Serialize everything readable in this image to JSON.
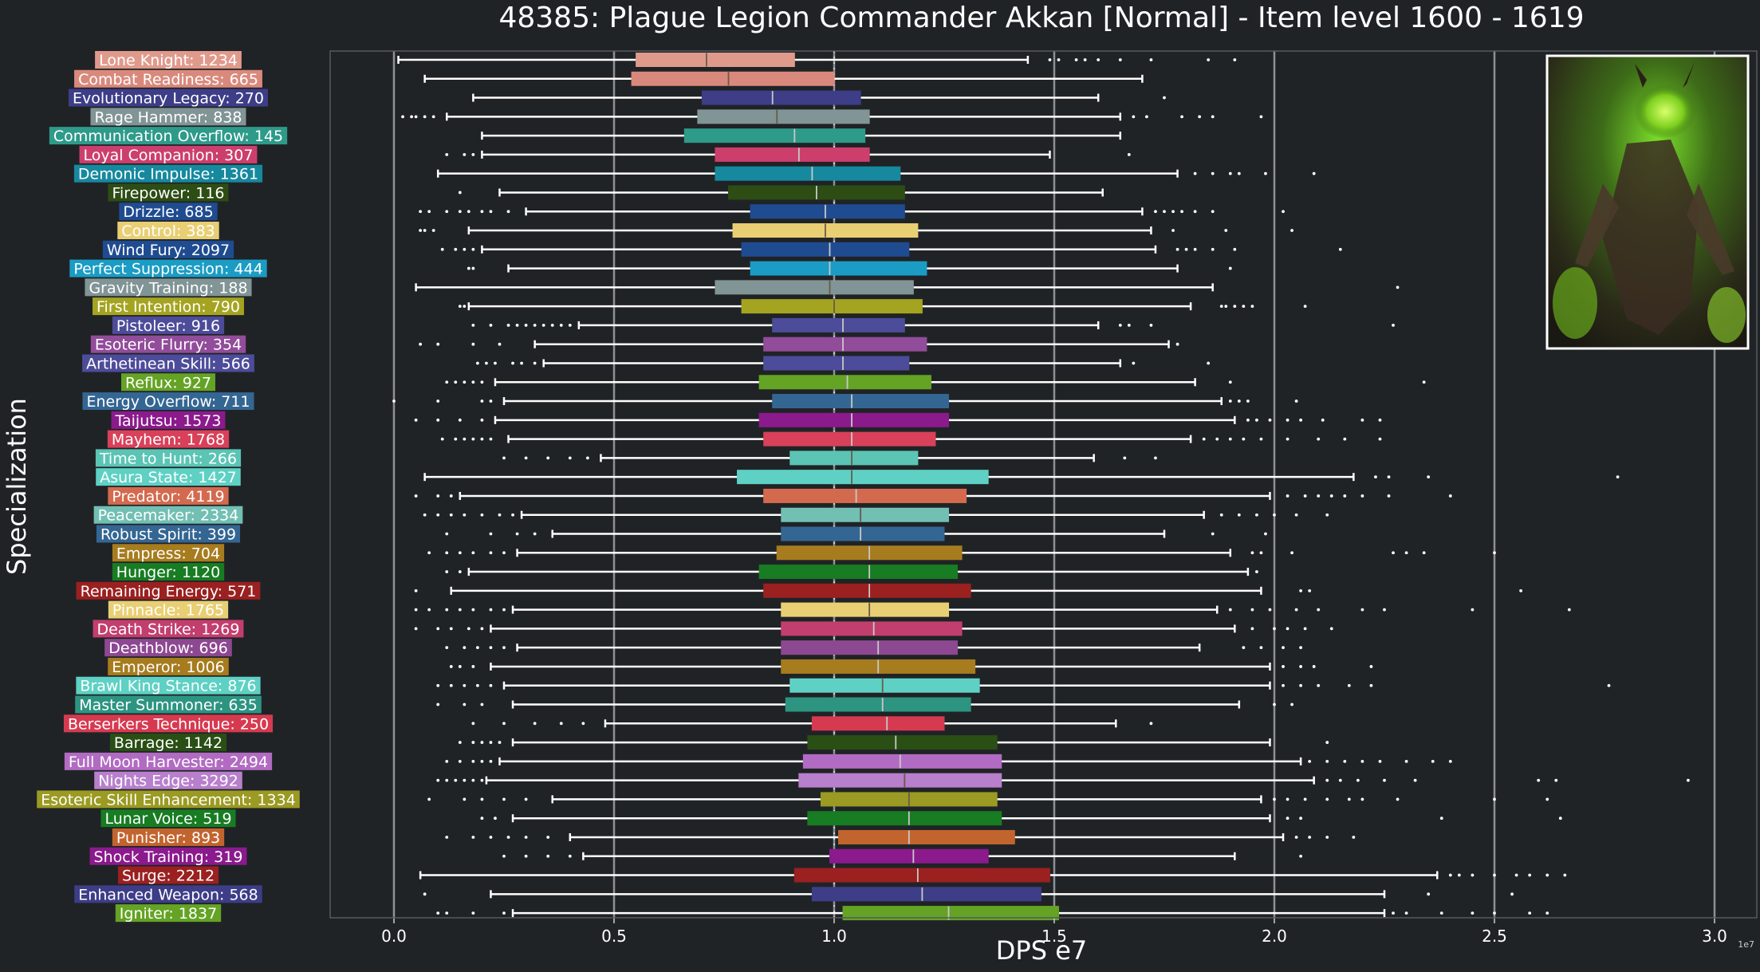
{
  "chart_data": {
    "type": "box",
    "orientation": "horizontal",
    "title": "48385: Plague Legion Commander Akkan [Normal] - Item level 1600 - 1619",
    "xlabel": "DPS e7",
    "ylabel": "Specialization",
    "x_offset_label": "1e7",
    "xlim": [
      -0.15,
      3.07
    ],
    "xticks": [
      0.0,
      0.5,
      1.0,
      1.5,
      2.0,
      2.5,
      3.0
    ],
    "xtick_labels": [
      "0.0",
      "0.5",
      "1.0",
      "1.5",
      "2.0",
      "2.5",
      "3.0"
    ],
    "grid": "vertical major lines",
    "legend": "none",
    "median_marker": "dotted line at 1.0",
    "series": [
      {
        "label": "Lone Knight: 1234",
        "color": "#e09a8c",
        "q1": 0.55,
        "median": 0.71,
        "q3": 0.91,
        "whislo": 0.01,
        "whishi": 1.44,
        "fliers": [
          1.49,
          1.51,
          1.55,
          1.57,
          1.6,
          1.65,
          1.72,
          1.85,
          1.91
        ]
      },
      {
        "label": "Combat Readiness: 665",
        "color": "#d9897c",
        "q1": 0.54,
        "median": 0.76,
        "q3": 1.0,
        "whislo": 0.07,
        "whishi": 1.7,
        "fliers": []
      },
      {
        "label": "Evolutionary Legacy: 270",
        "color": "#3d3d88",
        "q1": 0.7,
        "median": 0.86,
        "q3": 1.06,
        "whislo": 0.18,
        "whishi": 1.6,
        "fliers": [
          1.75
        ]
      },
      {
        "label": "Rage Hammer: 838",
        "color": "#819496",
        "q1": 0.69,
        "median": 0.87,
        "q3": 1.08,
        "whislo": 0.12,
        "whishi": 1.65,
        "fliers": [
          0.02,
          0.04,
          0.05,
          0.07,
          0.09,
          1.68,
          1.71,
          1.79,
          1.83,
          1.86,
          1.97
        ]
      },
      {
        "label": "Communication Overflow: 145",
        "color": "#2e9a8a",
        "q1": 0.66,
        "median": 0.91,
        "q3": 1.07,
        "whislo": 0.2,
        "whishi": 1.65,
        "fliers": []
      },
      {
        "label": "Loyal Companion: 307",
        "color": "#cc3f6d",
        "q1": 0.73,
        "median": 0.92,
        "q3": 1.08,
        "whislo": 0.2,
        "whishi": 1.49,
        "fliers": [
          0.12,
          0.16,
          0.18,
          1.67
        ]
      },
      {
        "label": "Demonic Impulse: 1361",
        "color": "#17899f",
        "q1": 0.73,
        "median": 0.95,
        "q3": 1.15,
        "whislo": 0.1,
        "whishi": 1.78,
        "fliers": [
          1.82,
          1.86,
          1.9,
          1.92,
          1.98,
          2.09
        ]
      },
      {
        "label": "Firepower: 116",
        "color": "#2d4d14",
        "q1": 0.76,
        "median": 0.96,
        "q3": 1.16,
        "whislo": 0.24,
        "whishi": 1.61,
        "fliers": [
          0.15
        ]
      },
      {
        "label": "Drizzle: 685",
        "color": "#1f4c91",
        "q1": 0.81,
        "median": 0.98,
        "q3": 1.16,
        "whislo": 0.3,
        "whishi": 1.7,
        "fliers": [
          0.06,
          0.08,
          0.12,
          0.15,
          0.17,
          0.2,
          0.22,
          0.26,
          1.73,
          1.75,
          1.77,
          1.79,
          1.82,
          1.86,
          2.02
        ]
      },
      {
        "label": "Control: 383",
        "color": "#e9cf74",
        "q1": 0.77,
        "median": 0.98,
        "q3": 1.19,
        "whislo": 0.17,
        "whishi": 1.72,
        "fliers": [
          0.06,
          0.07,
          0.09,
          1.77,
          1.89,
          2.04
        ]
      },
      {
        "label": "Wind Fury: 2097",
        "color": "#1f4c91",
        "q1": 0.79,
        "median": 0.99,
        "q3": 1.17,
        "whislo": 0.2,
        "whishi": 1.73,
        "fliers": [
          0.11,
          0.14,
          0.16,
          0.18,
          1.78,
          1.8,
          1.82,
          1.86,
          1.91,
          2.15
        ]
      },
      {
        "label": "Perfect Suppression: 444",
        "color": "#1a9cc4",
        "q1": 0.81,
        "median": 0.99,
        "q3": 1.21,
        "whislo": 0.26,
        "whishi": 1.78,
        "fliers": [
          0.17,
          0.18,
          1.9
        ]
      },
      {
        "label": "Gravity Training: 188",
        "color": "#819496",
        "q1": 0.73,
        "median": 0.99,
        "q3": 1.18,
        "whislo": 0.05,
        "whishi": 1.86,
        "fliers": [
          2.28
        ]
      },
      {
        "label": "First Intention: 790",
        "color": "#a5a421",
        "q1": 0.79,
        "median": 1.0,
        "q3": 1.2,
        "whislo": 0.17,
        "whishi": 1.81,
        "fliers": [
          0.15,
          0.16,
          1.88,
          1.89,
          1.91,
          1.93,
          1.95,
          2.07
        ]
      },
      {
        "label": "Pistoleer: 916",
        "color": "#4d4c9a",
        "q1": 0.86,
        "median": 1.02,
        "q3": 1.16,
        "whislo": 0.42,
        "whishi": 1.6,
        "fliers": [
          0.18,
          0.22,
          0.26,
          0.28,
          0.3,
          0.32,
          0.34,
          0.36,
          0.38,
          0.4,
          1.65,
          1.67,
          1.72,
          2.27
        ]
      },
      {
        "label": "Esoteric Flurry: 354",
        "color": "#914c9a",
        "q1": 0.84,
        "median": 1.02,
        "q3": 1.21,
        "whislo": 0.32,
        "whishi": 1.76,
        "fliers": [
          0.06,
          0.1,
          0.18,
          0.24,
          1.78
        ]
      },
      {
        "label": "Arthetinean Skill: 566",
        "color": "#4d4c9a",
        "q1": 0.84,
        "median": 1.02,
        "q3": 1.17,
        "whislo": 0.34,
        "whishi": 1.65,
        "fliers": [
          0.19,
          0.21,
          0.23,
          0.27,
          0.29,
          0.32,
          1.68,
          1.85
        ]
      },
      {
        "label": "Reflux: 927",
        "color": "#64a324",
        "q1": 0.83,
        "median": 1.03,
        "q3": 1.22,
        "whislo": 0.23,
        "whishi": 1.82,
        "fliers": [
          0.12,
          0.14,
          0.16,
          0.18,
          0.2,
          1.9,
          2.34
        ]
      },
      {
        "label": "Energy Overflow: 711",
        "color": "#346693",
        "q1": 0.86,
        "median": 1.04,
        "q3": 1.26,
        "whislo": 0.25,
        "whishi": 1.88,
        "fliers": [
          0.0,
          0.1,
          0.2,
          0.22,
          1.9,
          1.92,
          1.94,
          2.05
        ]
      },
      {
        "label": "Taijutsu: 1573",
        "color": "#8b1a8d",
        "q1": 0.83,
        "median": 1.04,
        "q3": 1.26,
        "whislo": 0.23,
        "whishi": 1.91,
        "fliers": [
          0.05,
          0.1,
          0.15,
          0.2,
          1.94,
          1.96,
          1.99,
          2.03,
          2.06,
          2.11,
          2.2,
          2.24
        ]
      },
      {
        "label": "Mayhem: 1768",
        "color": "#d9405a",
        "q1": 0.84,
        "median": 1.04,
        "q3": 1.23,
        "whislo": 0.26,
        "whishi": 1.81,
        "fliers": [
          0.11,
          0.14,
          0.16,
          0.18,
          0.2,
          0.22,
          1.84,
          1.87,
          1.9,
          1.93,
          1.97,
          2.03,
          2.1,
          2.16,
          2.24
        ]
      },
      {
        "label": "Time to Hunt: 266",
        "color": "#5bc4b5",
        "q1": 0.9,
        "median": 1.04,
        "q3": 1.19,
        "whislo": 0.47,
        "whishi": 1.59,
        "fliers": [
          0.25,
          0.3,
          0.35,
          0.4,
          0.44,
          1.66,
          1.73
        ]
      },
      {
        "label": "Asura State: 1427",
        "color": "#5ed1c4",
        "q1": 0.78,
        "median": 1.04,
        "q3": 1.35,
        "whislo": 0.07,
        "whishi": 2.18,
        "fliers": [
          2.23,
          2.26,
          2.35,
          2.78
        ]
      },
      {
        "label": "Predator: 4119",
        "color": "#d36a4e",
        "q1": 0.84,
        "median": 1.05,
        "q3": 1.3,
        "whislo": 0.15,
        "whishi": 1.99,
        "fliers": [
          0.05,
          0.1,
          0.13,
          2.03,
          2.07,
          2.1,
          2.13,
          2.16,
          2.2,
          2.26,
          2.4
        ]
      },
      {
        "label": "Peacemaker: 2334",
        "color": "#72bfb4",
        "q1": 0.88,
        "median": 1.06,
        "q3": 1.26,
        "whislo": 0.29,
        "whishi": 1.84,
        "fliers": [
          0.07,
          0.1,
          0.13,
          0.16,
          0.2,
          0.24,
          0.27,
          1.88,
          1.92,
          1.96,
          2.0,
          2.05,
          2.12
        ]
      },
      {
        "label": "Robust Spirit: 399",
        "color": "#346693",
        "q1": 0.88,
        "median": 1.06,
        "q3": 1.25,
        "whislo": 0.36,
        "whishi": 1.75,
        "fliers": [
          0.12,
          0.22,
          0.28,
          0.32,
          1.86,
          1.98
        ]
      },
      {
        "label": "Empress: 704",
        "color": "#a77c1e",
        "q1": 0.87,
        "median": 1.08,
        "q3": 1.29,
        "whislo": 0.28,
        "whishi": 1.9,
        "fliers": [
          0.08,
          0.12,
          0.15,
          0.18,
          0.22,
          0.25,
          1.95,
          1.97,
          2.04,
          2.27,
          2.3,
          2.34,
          2.5
        ]
      },
      {
        "label": "Hunger: 1120",
        "color": "#177c22",
        "q1": 0.83,
        "median": 1.08,
        "q3": 1.28,
        "whislo": 0.17,
        "whishi": 1.94,
        "fliers": [
          0.12,
          0.15,
          1.96
        ]
      },
      {
        "label": "Remaining Energy: 571",
        "color": "#9b2020",
        "q1": 0.84,
        "median": 1.08,
        "q3": 1.31,
        "whislo": 0.13,
        "whishi": 1.97,
        "fliers": [
          0.05,
          2.06,
          2.08,
          2.56
        ]
      },
      {
        "label": "Pinnacle: 1765",
        "color": "#e9cf74",
        "q1": 0.88,
        "median": 1.08,
        "q3": 1.26,
        "whislo": 0.27,
        "whishi": 1.87,
        "fliers": [
          0.05,
          0.08,
          0.12,
          0.15,
          0.18,
          0.22,
          0.25,
          1.9,
          1.95,
          1.99,
          2.05,
          2.1,
          2.2,
          2.25,
          2.45,
          2.67
        ]
      },
      {
        "label": "Death Strike: 1269",
        "color": "#c23e6d",
        "q1": 0.88,
        "median": 1.09,
        "q3": 1.29,
        "whislo": 0.22,
        "whishi": 1.91,
        "fliers": [
          0.05,
          0.1,
          0.13,
          0.17,
          0.2,
          1.95,
          2.0,
          2.03,
          2.07,
          2.13
        ]
      },
      {
        "label": "Deathblow: 696",
        "color": "#8d4892",
        "q1": 0.88,
        "median": 1.1,
        "q3": 1.28,
        "whislo": 0.28,
        "whishi": 1.83,
        "fliers": [
          0.12,
          0.16,
          0.19,
          0.22,
          0.25,
          1.93,
          1.97,
          2.02,
          2.06
        ]
      },
      {
        "label": "Emperor: 1006",
        "color": "#a77c1e",
        "q1": 0.88,
        "median": 1.1,
        "q3": 1.32,
        "whislo": 0.22,
        "whishi": 1.99,
        "fliers": [
          0.13,
          0.15,
          0.18,
          2.02,
          2.06,
          2.09,
          2.22
        ]
      },
      {
        "label": "Brawl King Stance: 876",
        "color": "#5ed1c4",
        "q1": 0.9,
        "median": 1.11,
        "q3": 1.33,
        "whislo": 0.25,
        "whishi": 1.99,
        "fliers": [
          0.1,
          0.13,
          0.16,
          0.19,
          0.22,
          2.02,
          2.06,
          2.1,
          2.17,
          2.22,
          2.76
        ]
      },
      {
        "label": "Master Summoner: 635",
        "color": "#2d9482",
        "q1": 0.89,
        "median": 1.11,
        "q3": 1.31,
        "whislo": 0.27,
        "whishi": 1.92,
        "fliers": [
          0.1,
          0.16,
          0.2,
          2.0,
          2.04
        ]
      },
      {
        "label": "Berserkers Technique: 250",
        "color": "#d63a50",
        "q1": 0.95,
        "median": 1.12,
        "q3": 1.25,
        "whislo": 0.48,
        "whishi": 1.64,
        "fliers": [
          0.18,
          0.25,
          0.32,
          0.38,
          0.43,
          1.72
        ]
      },
      {
        "label": "Barrage: 1142",
        "color": "#2a4f15",
        "q1": 0.94,
        "median": 1.14,
        "q3": 1.37,
        "whislo": 0.27,
        "whishi": 1.99,
        "fliers": [
          0.15,
          0.18,
          0.2,
          0.22,
          0.24,
          2.12
        ]
      },
      {
        "label": "Full Moon Harvester: 2494",
        "color": "#b26bc2",
        "q1": 0.93,
        "median": 1.15,
        "q3": 1.38,
        "whislo": 0.24,
        "whishi": 2.06,
        "fliers": [
          0.12,
          0.15,
          0.18,
          0.2,
          0.22,
          2.08,
          2.12,
          2.16,
          2.2,
          2.24,
          2.3,
          2.36,
          2.4
        ]
      },
      {
        "label": "Nights Edge: 3292",
        "color": "#b87fcc",
        "q1": 0.92,
        "median": 1.16,
        "q3": 1.38,
        "whislo": 0.21,
        "whishi": 2.09,
        "fliers": [
          0.1,
          0.12,
          0.14,
          0.16,
          0.18,
          0.2,
          2.12,
          2.15,
          2.19,
          2.25,
          2.32,
          2.6,
          2.64,
          2.94
        ]
      },
      {
        "label": "Esoteric Skill Enhancement: 1334",
        "color": "#9b9a22",
        "q1": 0.97,
        "median": 1.17,
        "q3": 1.37,
        "whislo": 0.36,
        "whishi": 1.97,
        "fliers": [
          0.08,
          0.16,
          0.2,
          0.25,
          0.3,
          2.0,
          2.03,
          2.07,
          2.12,
          2.17,
          2.2,
          2.28,
          2.5,
          2.62
        ]
      },
      {
        "label": "Lunar Voice: 519",
        "color": "#177c22",
        "q1": 0.94,
        "median": 1.17,
        "q3": 1.38,
        "whislo": 0.27,
        "whishi": 1.99,
        "fliers": [
          0.2,
          0.23,
          2.03,
          2.06,
          2.38,
          2.65
        ]
      },
      {
        "label": "Punisher: 893",
        "color": "#c2642e",
        "q1": 1.01,
        "median": 1.17,
        "q3": 1.41,
        "whislo": 0.4,
        "whishi": 2.02,
        "fliers": [
          0.12,
          0.18,
          0.22,
          0.26,
          0.3,
          0.35,
          2.05,
          2.08,
          2.12,
          2.18
        ]
      },
      {
        "label": "Shock Training: 319",
        "color": "#8b1a8d",
        "q1": 0.99,
        "median": 1.18,
        "q3": 1.35,
        "whislo": 0.43,
        "whishi": 1.91,
        "fliers": [
          0.25,
          0.3,
          0.35,
          0.4,
          2.06
        ]
      },
      {
        "label": "Surge: 2212",
        "color": "#9b2020",
        "q1": 0.91,
        "median": 1.19,
        "q3": 1.49,
        "whislo": 0.06,
        "whishi": 2.37,
        "fliers": [
          2.4,
          2.42,
          2.45,
          2.5,
          2.55,
          2.58,
          2.62,
          2.66
        ]
      },
      {
        "label": "Enhanced Weapon: 568",
        "color": "#3d3d88",
        "q1": 0.95,
        "median": 1.2,
        "q3": 1.47,
        "whislo": 0.22,
        "whishi": 2.25,
        "fliers": [
          0.07,
          2.35,
          2.54
        ]
      },
      {
        "label": "Igniter: 1837",
        "color": "#64a324",
        "q1": 1.02,
        "median": 1.26,
        "q3": 1.51,
        "whislo": 0.27,
        "whishi": 2.25,
        "fliers": [
          0.1,
          0.12,
          0.18,
          0.25,
          2.27,
          2.3,
          2.38,
          2.45,
          2.5,
          2.58,
          2.62
        ]
      }
    ],
    "inset_image": "boss-portrait: green-glowing demonic commander"
  }
}
